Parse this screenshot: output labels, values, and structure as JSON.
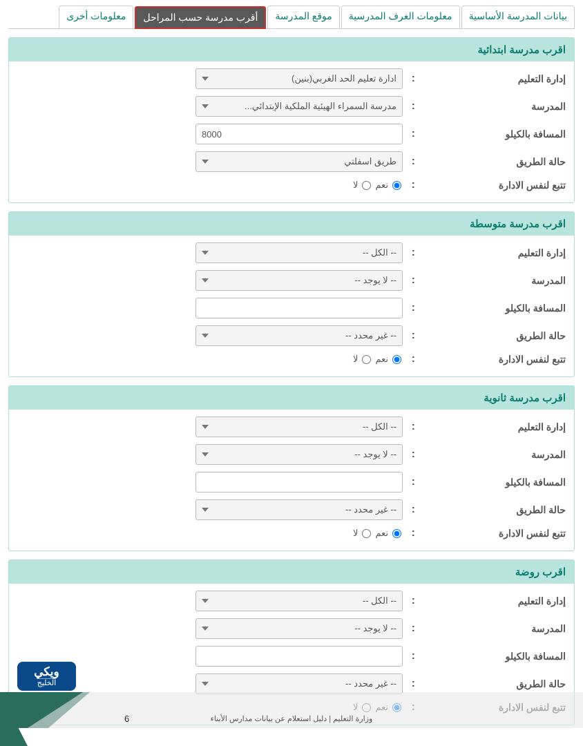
{
  "tabs": [
    {
      "label": "بيانات المدرسة الأساسية",
      "active": false
    },
    {
      "label": "معلومات الغرف المدرسية",
      "active": false
    },
    {
      "label": "موقع المدرسة",
      "active": false
    },
    {
      "label": "أقرب مدرسة حسب المراحل",
      "active": true
    },
    {
      "label": "معلومات أخرى",
      "active": false
    }
  ],
  "field_labels": {
    "education_admin": "إدارة التعليم",
    "school": "المدرسة",
    "distance_km": "المسافة بالكيلو",
    "road_condition": "حالة الطريق",
    "same_admin": "تتبع لنفس الادارة",
    "yes": "نعم",
    "no": "لا"
  },
  "sections": [
    {
      "title": "اقرب مدرسة ابتدائية",
      "fields": {
        "education_admin": "ادارة تعليم الحد الغربي(بنين)",
        "school": "مدرسة السمراء الهيئية الملكية الإبتدائي...",
        "distance_km": "8000",
        "road_condition": "طريق اسفلتي",
        "same_admin": "yes"
      }
    },
    {
      "title": "اقرب مدرسة متوسطة",
      "fields": {
        "education_admin": "-- الكل --",
        "school": "-- لا يوجد --",
        "distance_km": "",
        "road_condition": "-- غير محدد --",
        "same_admin": "yes"
      }
    },
    {
      "title": "اقرب مدرسة ثانوية",
      "fields": {
        "education_admin": "-- الكل --",
        "school": "-- لا يوجد --",
        "distance_km": "",
        "road_condition": "-- غير محدد --",
        "same_admin": "yes"
      }
    },
    {
      "title": "اقرب روضة",
      "fields": {
        "education_admin": "-- الكل --",
        "school": "-- لا يوجد --",
        "distance_km": "",
        "road_condition": "-- غير محدد --",
        "same_admin": "yes"
      }
    }
  ],
  "footer": {
    "right": "وزارة التعليم  |  دليل استعلام عن بيانات مدارس الأبناء",
    "page": "6"
  },
  "logo": {
    "main": "ويكي",
    "sub": "الخليج"
  },
  "colors": {
    "teal_light": "#b9e4de",
    "teal_dark": "#0a7d6f",
    "tab_active_bg": "#595959",
    "tab_active_border": "#c9302c",
    "footer_green": "#2a6d5c",
    "footer_gray": "#cfcfcf"
  }
}
